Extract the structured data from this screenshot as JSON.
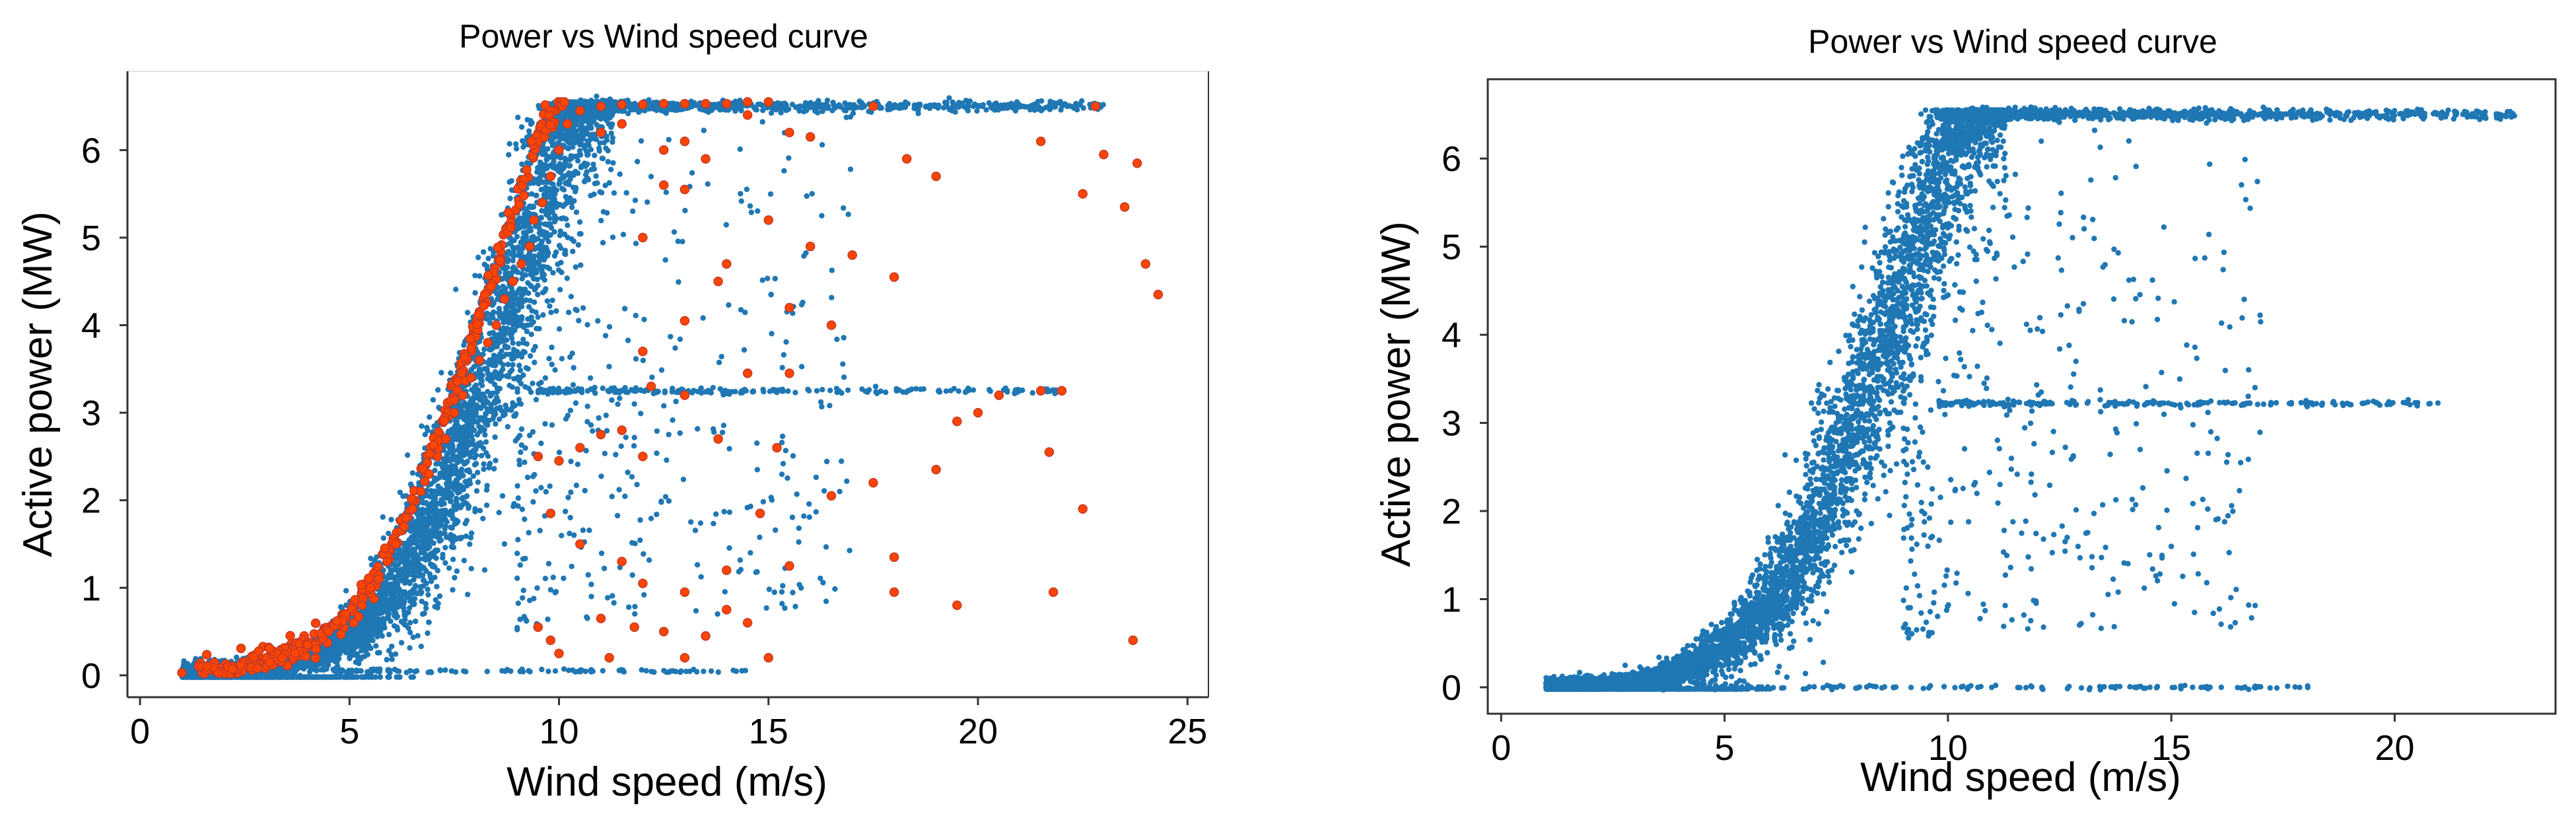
{
  "chart_data": [
    {
      "type": "scatter",
      "title": "Power vs Wind speed curve",
      "xlabel": "Wind speed (m/s)",
      "ylabel": "Active power (MW)",
      "xlim": [
        -0.3,
        25.5
      ],
      "ylim": [
        -0.25,
        6.9
      ],
      "xticks": [
        0,
        5,
        10,
        15,
        20,
        25
      ],
      "yticks": [
        0,
        1,
        2,
        3,
        4,
        5,
        6
      ],
      "grid": false,
      "series": [
        {
          "color": "#1f77b4",
          "marker": "dot",
          "curve": {
            "x": [
              1.0,
              2.0,
              3.0,
              4.0,
              5.0,
              6.0,
              7.0,
              8.0,
              9.0,
              10.0,
              10.5,
              11.0,
              25.0
            ],
            "y": [
              0.03,
              0.05,
              0.08,
              0.2,
              0.45,
              0.95,
              1.9,
              3.2,
              4.6,
              6.1,
              6.48,
              6.5,
              6.5
            ]
          },
          "plateau_x": [
            10.5,
            23.0
          ],
          "plateau_y": 6.5,
          "band_y": 3.25,
          "band_x": [
            9.5,
            22.0
          ],
          "floor_y": 0.05,
          "floor_x": [
            1.0,
            14.5
          ]
        },
        {
          "color": "#ff4500",
          "edge_color": "#c0392b",
          "marker": "circle",
          "x": [
            1.0,
            1.6,
            2.2,
            2.4,
            2.8,
            3.1,
            3.4,
            3.7,
            4.0,
            4.2,
            4.5,
            4.7,
            4.9,
            5.1,
            5.3,
            5.5,
            5.7,
            5.9,
            6.1,
            6.3,
            6.5,
            6.7,
            6.9,
            7.1,
            7.3,
            7.5,
            7.7,
            7.9,
            8.1,
            8.3,
            8.5,
            8.7,
            8.9,
            9.1,
            9.3,
            9.4,
            9.6,
            9.8,
            10.0,
            10.2,
            10.5,
            11.0,
            11.5,
            12.0,
            12.5,
            13.0,
            13.5,
            14.0,
            14.5,
            15.0,
            11.0,
            11.5,
            12.5,
            13.0,
            13.5,
            14.5,
            15.5,
            16.0,
            17.5,
            18.3,
            19.0,
            22.8,
            21.5,
            23.0,
            23.8,
            24.3,
            23.5,
            22.5,
            24.0,
            12.5,
            13.0,
            12.0,
            15.5,
            14.0,
            13.8,
            15.0,
            16.0,
            17.0,
            18.0,
            16.5,
            13.0,
            12.0,
            14.5,
            15.5,
            12.2,
            13.0,
            19.5,
            20.0,
            20.5,
            21.5,
            22.0,
            21.7,
            18.0,
            18.0,
            19.5,
            21.8,
            16.5,
            17.5,
            19.0,
            22.5,
            23.7,
            9.5,
            10.0,
            10.5,
            11.0,
            11.5,
            12.0,
            9.8,
            10.5,
            11.5,
            12.0,
            13.0,
            14.0,
            14.8,
            9.5,
            11.0,
            11.8,
            12.5,
            13.5,
            14.0,
            10.0,
            11.2,
            13.0,
            14.5,
            15.0,
            15.5,
            13.8,
            15.2,
            9.8
          ],
          "y": [
            0.03,
            0.1,
            0.07,
            0.12,
            0.08,
            0.15,
            0.2,
            0.25,
            0.35,
            0.3,
            0.5,
            0.62,
            0.7,
            0.6,
            0.8,
            1.0,
            1.1,
            1.3,
            1.5,
            1.7,
            1.9,
            2.1,
            2.3,
            2.5,
            2.7,
            3.0,
            3.2,
            3.4,
            3.6,
            3.8,
            4.0,
            4.3,
            4.5,
            4.7,
            4.9,
            5.2,
            5.4,
            5.7,
            6.0,
            6.3,
            6.45,
            6.5,
            6.52,
            6.52,
            6.53,
            6.53,
            6.53,
            6.53,
            6.55,
            6.55,
            6.2,
            6.3,
            6.0,
            6.1,
            5.9,
            6.4,
            6.2,
            6.15,
            6.5,
            5.9,
            5.7,
            6.5,
            6.1,
            5.95,
            5.85,
            4.35,
            5.35,
            5.5,
            4.7,
            5.6,
            5.55,
            5.0,
            4.2,
            4.7,
            4.5,
            5.2,
            4.9,
            4.8,
            4.55,
            4.0,
            4.05,
            3.7,
            3.45,
            3.45,
            3.3,
            3.2,
            2.9,
            3.0,
            3.2,
            3.25,
            3.25,
            2.55,
            1.35,
            0.95,
            0.8,
            0.95,
            2.05,
            2.2,
            2.35,
            1.9,
            0.4,
            2.5,
            2.45,
            2.6,
            2.75,
            2.8,
            2.5,
            1.85,
            1.5,
            1.3,
            1.05,
            0.95,
            1.2,
            1.85,
            0.55,
            0.65,
            0.55,
            0.5,
            0.45,
            0.75,
            0.25,
            0.2,
            0.2,
            0.6,
            0.2,
            1.25,
            2.7,
            2.6,
            0.4
          ]
        }
      ]
    },
    {
      "type": "scatter",
      "title": "Power vs Wind speed curve",
      "xlabel": "Wind speed (m/s)",
      "ylabel": "Active power (MW)",
      "xlim": [
        -0.3,
        23.6
      ],
      "ylim": [
        -0.3,
        6.9
      ],
      "xticks": [
        0,
        5,
        10,
        15,
        20
      ],
      "yticks": [
        0,
        1,
        2,
        3,
        4,
        5,
        6
      ],
      "grid": false,
      "series": [
        {
          "color": "#1f77b4",
          "marker": "dot",
          "curve": {
            "x": [
              1.0,
              2.0,
              3.0,
              4.0,
              5.0,
              6.0,
              7.0,
              8.0,
              9.0,
              10.0,
              10.5,
              11.0,
              25.0
            ],
            "y": [
              0.0,
              0.02,
              0.06,
              0.18,
              0.45,
              0.95,
              1.9,
              3.2,
              4.6,
              6.1,
              6.48,
              6.5,
              6.5
            ]
          },
          "plateau_x": [
            10.5,
            22.7
          ],
          "plateau_y": 6.5,
          "band_y": 3.22,
          "band_x": [
            9.8,
            21.0
          ],
          "floor_y": 0.0,
          "floor_x": [
            1.0,
            18.2
          ]
        }
      ]
    }
  ]
}
